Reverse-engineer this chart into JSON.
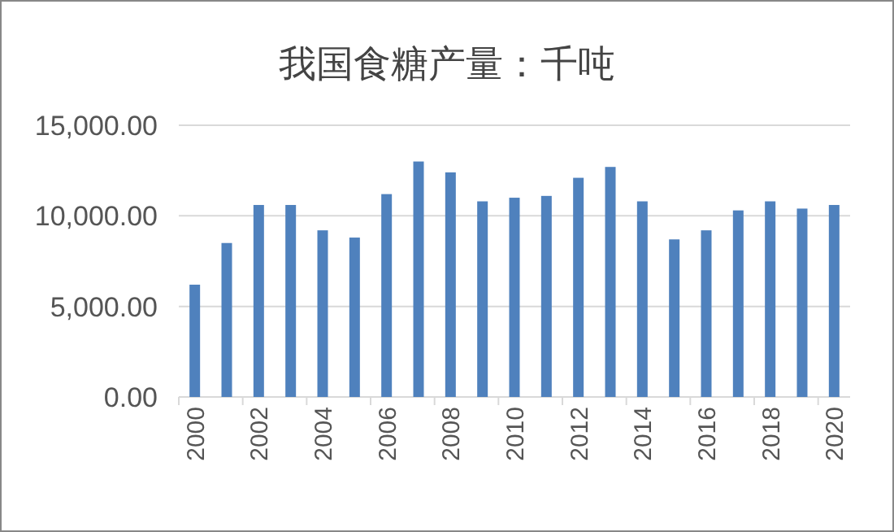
{
  "chart_data": {
    "type": "bar",
    "title": "我国食糖产量：千吨",
    "categories": [
      "2000",
      null,
      "2002",
      null,
      "2004",
      null,
      "2006",
      null,
      "2008",
      null,
      "2010",
      null,
      "2012",
      null,
      "2014",
      null,
      "2016",
      null,
      "2018",
      null,
      "2020"
    ],
    "values": [
      6200,
      8500,
      10600,
      10600,
      9200,
      8800,
      11200,
      13000,
      12400,
      10800,
      11000,
      11100,
      12100,
      12700,
      10800,
      8700,
      9200,
      10300,
      10800,
      10400,
      10600
    ],
    "color": "#4f81bd",
    "ylim": [
      0,
      15000
    ],
    "yticks": [
      {
        "value": 0,
        "label": "0.00"
      },
      {
        "value": 5000,
        "label": "5,000.00"
      },
      {
        "value": 10000,
        "label": "10,000.00"
      },
      {
        "value": 15000,
        "label": "15,000.00"
      }
    ],
    "grid": "y"
  }
}
